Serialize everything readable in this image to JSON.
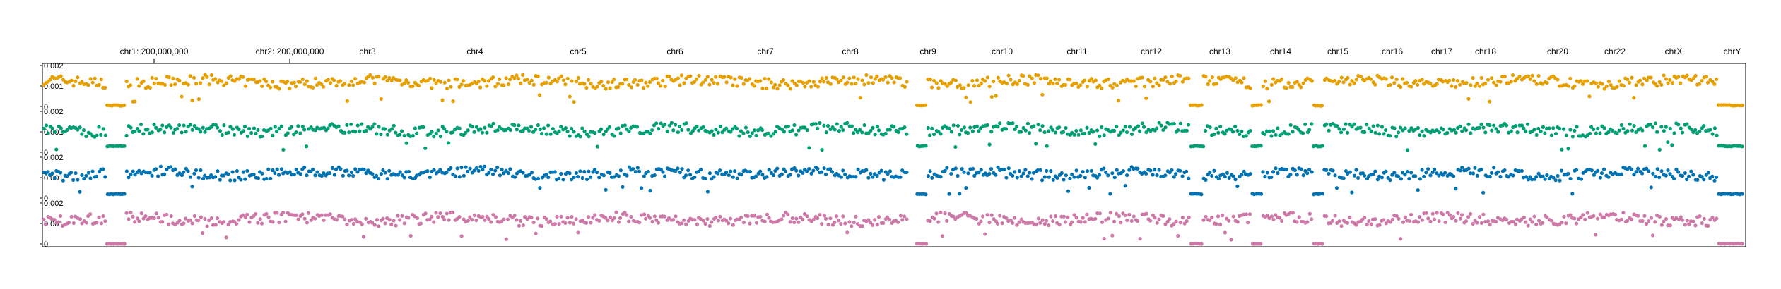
{
  "chart_data": {
    "type": "scatter",
    "title": "",
    "xlabel": "",
    "ylabel": "",
    "ylim": [
      0,
      0.002
    ],
    "y_ticks": [
      "0",
      "0.001",
      "0.002"
    ],
    "grid": false,
    "legend": "none",
    "chromosome_labels": [
      {
        "name": "chr1: 200,000,000",
        "tick": true
      },
      {
        "name": "chr2: 200,000,000",
        "tick": true
      },
      {
        "name": "chr3"
      },
      {
        "name": "chr4"
      },
      {
        "name": "chr5"
      },
      {
        "name": "chr6"
      },
      {
        "name": "chr7"
      },
      {
        "name": "chr8"
      },
      {
        "name": "chr9"
      },
      {
        "name": "chr10"
      },
      {
        "name": "chr11"
      },
      {
        "name": "chr12"
      },
      {
        "name": "chr13"
      },
      {
        "name": "chr14"
      },
      {
        "name": "chr15"
      },
      {
        "name": "chr16"
      },
      {
        "name": "chr17"
      },
      {
        "name": "chr18"
      },
      {
        "name": "chr20"
      },
      {
        "name": "chr22"
      },
      {
        "name": "chrX"
      },
      {
        "name": "chrY"
      }
    ],
    "series": [
      {
        "color": "#E69F00",
        "typical_value": 0.0012,
        "low_regions_value": 5e-05
      },
      {
        "color": "#009E73",
        "typical_value": 0.0011,
        "low_regions_value": 0.0003
      },
      {
        "color": "#0072B2",
        "typical_value": 0.0012,
        "low_regions_value": 0.0002
      },
      {
        "color": "#CC79A7",
        "typical_value": 0.0012,
        "low_regions_value": 0.0
      }
    ]
  }
}
